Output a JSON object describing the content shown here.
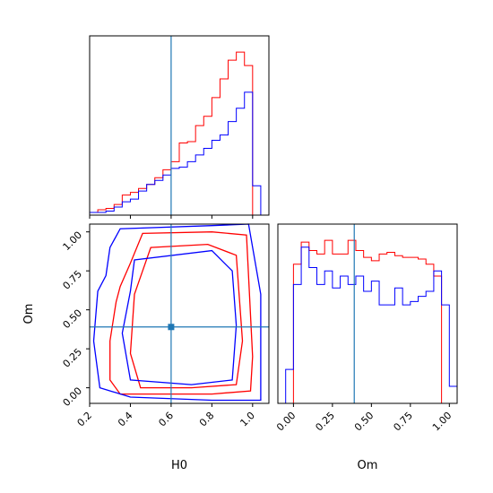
{
  "chart_data": {
    "type": "corner",
    "parameters": [
      "H0",
      "Om"
    ],
    "truths": {
      "H0": 0.6,
      "Om": 0.39
    },
    "colors": {
      "series_a": "#ff0000",
      "series_b": "#0000ff",
      "truth": "#1f77b4"
    },
    "xlabel_left": "H0",
    "xlabel_right": "Om",
    "ylabel_left": "Om",
    "axes": {
      "H0": {
        "range": [
          0.2,
          1.08
        ],
        "ticks": [
          "0.2",
          "0.4",
          "0.6",
          "0.8",
          "1.0"
        ]
      },
      "Om": {
        "range": [
          -0.1,
          1.05
        ],
        "ticks": [
          "0.00",
          "0.25",
          "0.50",
          "0.75",
          "1.00"
        ]
      }
    },
    "hist_H0": {
      "edges": [
        0.2,
        0.24,
        0.28,
        0.32,
        0.36,
        0.4,
        0.44,
        0.48,
        0.52,
        0.56,
        0.6,
        0.64,
        0.68,
        0.72,
        0.76,
        0.8,
        0.84,
        0.88,
        0.92,
        0.96,
        1.0,
        1.04,
        1.08
      ],
      "series": [
        {
          "color": "red",
          "counts": [
            2,
            4,
            5,
            8,
            15,
            17,
            20,
            23,
            28,
            34,
            40,
            54,
            55,
            67,
            74,
            88,
            102,
            116,
            122,
            112,
            0,
            0
          ]
        },
        {
          "color": "blue",
          "counts": [
            2,
            2,
            3,
            6,
            10,
            12,
            18,
            23,
            26,
            30,
            35,
            36,
            40,
            45,
            50,
            56,
            60,
            70,
            80,
            92,
            22,
            0
          ]
        }
      ]
    },
    "hist_Om": {
      "edges": [
        -0.1,
        -0.05,
        0.0,
        0.05,
        0.1,
        0.15,
        0.2,
        0.25,
        0.3,
        0.35,
        0.4,
        0.45,
        0.5,
        0.55,
        0.6,
        0.65,
        0.7,
        0.75,
        0.8,
        0.85,
        0.9,
        0.95,
        1.0,
        1.05
      ],
      "series": [
        {
          "color": "red",
          "counts": [
            0,
            0,
            82,
            95,
            90,
            88,
            96,
            88,
            88,
            96,
            90,
            86,
            84,
            88,
            89,
            87,
            86,
            86,
            85,
            82,
            75,
            0,
            0
          ]
        },
        {
          "color": "blue",
          "counts": [
            0,
            20,
            70,
            92,
            80,
            70,
            78,
            68,
            75,
            70,
            75,
            66,
            72,
            58,
            58,
            68,
            58,
            60,
            63,
            66,
            78,
            58,
            10
          ]
        }
      ]
    },
    "contours": [
      {
        "color": "red",
        "points": [
          [
            0.3,
            0.05
          ],
          [
            0.3,
            0.3
          ],
          [
            0.33,
            0.55
          ],
          [
            0.35,
            0.65
          ],
          [
            0.4,
            0.8
          ],
          [
            0.46,
            0.99
          ],
          [
            0.8,
            1.0
          ],
          [
            0.97,
            0.98
          ],
          [
            1.0,
            0.2
          ],
          [
            0.99,
            -0.02
          ],
          [
            0.8,
            -0.04
          ],
          [
            0.35,
            -0.04
          ]
        ]
      },
      {
        "color": "red",
        "points": [
          [
            0.4,
            0.22
          ],
          [
            0.42,
            0.6
          ],
          [
            0.46,
            0.75
          ],
          [
            0.5,
            0.9
          ],
          [
            0.78,
            0.92
          ],
          [
            0.92,
            0.85
          ],
          [
            0.95,
            0.3
          ],
          [
            0.92,
            0.02
          ],
          [
            0.7,
            0.0
          ],
          [
            0.45,
            0.0
          ]
        ]
      },
      {
        "color": "blue",
        "points": [
          [
            0.22,
            0.3
          ],
          [
            0.24,
            0.62
          ],
          [
            0.28,
            0.72
          ],
          [
            0.3,
            0.9
          ],
          [
            0.35,
            1.02
          ],
          [
            0.8,
            1.04
          ],
          [
            0.98,
            1.05
          ],
          [
            1.04,
            0.6
          ],
          [
            1.04,
            -0.08
          ],
          [
            0.8,
            -0.08
          ],
          [
            0.4,
            -0.06
          ],
          [
            0.25,
            0.0
          ]
        ]
      },
      {
        "color": "blue",
        "points": [
          [
            0.36,
            0.35
          ],
          [
            0.4,
            0.62
          ],
          [
            0.42,
            0.82
          ],
          [
            0.8,
            0.88
          ],
          [
            0.9,
            0.75
          ],
          [
            0.92,
            0.4
          ],
          [
            0.9,
            0.05
          ],
          [
            0.7,
            0.02
          ],
          [
            0.4,
            0.05
          ]
        ]
      }
    ]
  }
}
